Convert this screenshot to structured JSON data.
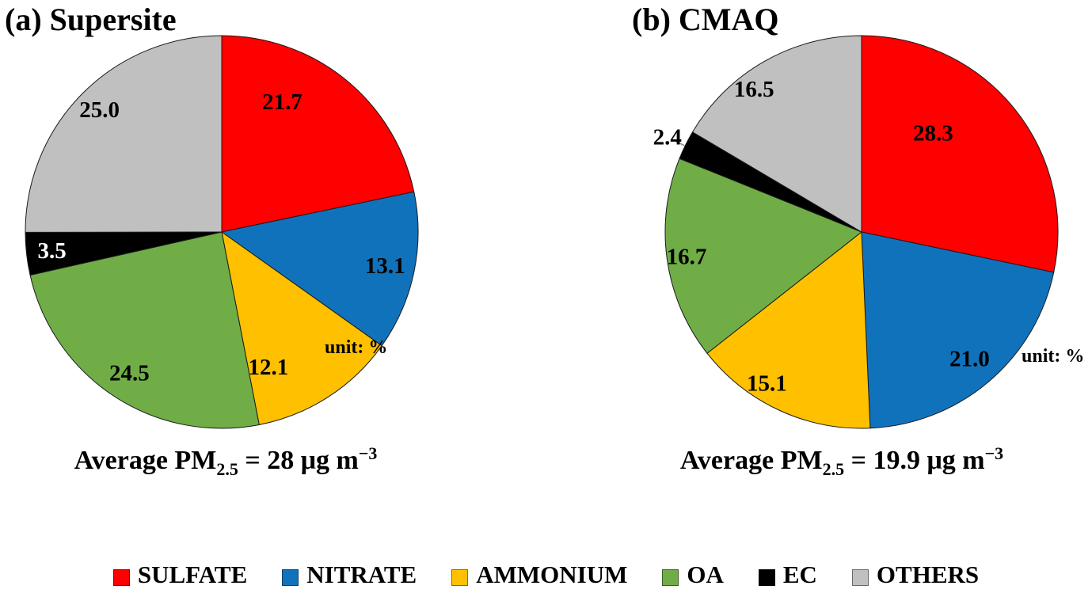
{
  "chart_data": [
    {
      "type": "pie",
      "title": "(a) Supersite",
      "unit_note": "unit: %",
      "start_angle_deg": 0,
      "direction": "clockwise",
      "caption": {
        "prefix": "Average PM",
        "sub": "2.5",
        "equals": " = ",
        "value": "28",
        "unit": " μg m",
        "exponent": "−3"
      },
      "slices": [
        {
          "label": "SULFATE",
          "value": 21.7,
          "color": "#FF0000",
          "label_color": "#000000",
          "label_r": 0.73,
          "label_angle_deg": 25
        },
        {
          "label": "NITRATE",
          "value": 13.1,
          "color": "#1172BC",
          "label_color": "#000000",
          "label_r": 0.85
        },
        {
          "label": "AMMONIUM",
          "value": 12.1,
          "color": "#FFC000",
          "label_color": "#000000",
          "label_r": 0.73,
          "label_angle_deg": 161
        },
        {
          "label": "OA",
          "value": 24.5,
          "color": "#70AD47",
          "label_color": "#000000",
          "label_r": 0.86
        },
        {
          "label": "EC",
          "value": 3.5,
          "color": "#000000",
          "label_color": "#FFFFFF",
          "label_r": 0.87
        },
        {
          "label": "OTHERS",
          "value": 25.0,
          "color": "#C0C0C0",
          "label_color": "#000000",
          "label_r": 0.88
        }
      ]
    },
    {
      "type": "pie",
      "title": "(b) CMAQ",
      "unit_note": "unit: %",
      "start_angle_deg": 0,
      "direction": "clockwise",
      "caption": {
        "prefix": "Average PM",
        "sub": "2.5",
        "equals": " = ",
        "value": "19.9",
        "unit": " μg m",
        "exponent": "−3"
      },
      "slices": [
        {
          "label": "SULFATE",
          "value": 28.3,
          "color": "#FF0000",
          "label_color": "#000000",
          "label_r": 0.62,
          "label_angle_deg": 36
        },
        {
          "label": "NITRATE",
          "value": 21.0,
          "color": "#1172BC",
          "label_color": "#000000",
          "label_r": 0.85
        },
        {
          "label": "AMMONIUM",
          "value": 15.1,
          "color": "#FFC000",
          "label_color": "#000000",
          "label_r": 0.91,
          "label_angle_deg": 212
        },
        {
          "label": "OA",
          "value": 16.7,
          "color": "#70AD47",
          "label_color": "#000000",
          "label_r": 0.9
        },
        {
          "label": "EC",
          "value": 2.4,
          "color": "#000000",
          "label_color": "#000000",
          "label_r": 1.1,
          "label_angle_deg": 296
        },
        {
          "label": "OTHERS",
          "value": 16.5,
          "color": "#C0C0C0",
          "label_color": "#000000",
          "label_r": 0.91,
          "label_angle_deg": 323
        }
      ]
    }
  ],
  "legend": {
    "items": [
      {
        "label": "SULFATE",
        "color": "#FF0000"
      },
      {
        "label": "NITRATE",
        "color": "#1172BC"
      },
      {
        "label": "AMMONIUM",
        "color": "#FFC000"
      },
      {
        "label": "OA",
        "color": "#70AD47"
      },
      {
        "label": "EC",
        "color": "#000000"
      },
      {
        "label": "OTHERS",
        "color": "#C0C0C0"
      }
    ]
  }
}
